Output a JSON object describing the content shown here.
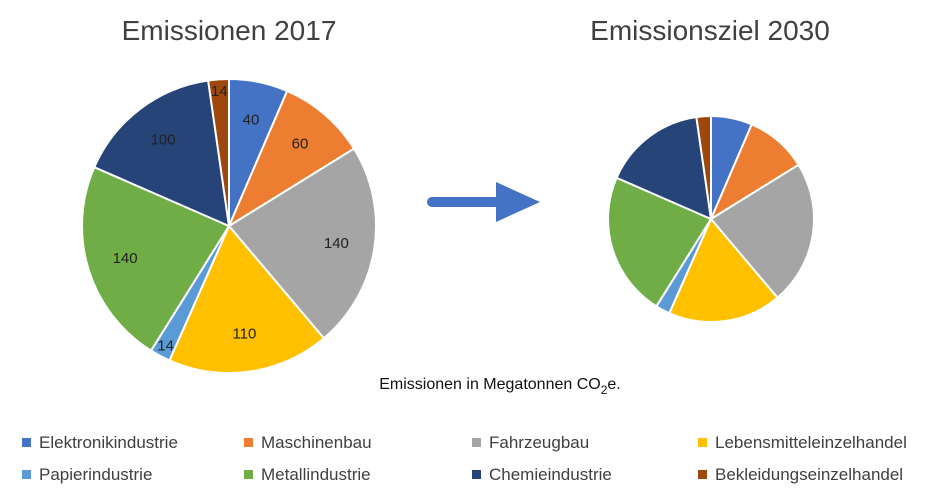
{
  "chart_data": [
    {
      "type": "pie",
      "title": "Emissionen 2017",
      "categories": [
        "Elektronikindustrie",
        "Maschinenbau",
        "Fahrzeugbau",
        "Lebensmitteleinzelhandel",
        "Papierindustrie",
        "Metallindustrie",
        "Chemieindustrie",
        "Bekleidungseinzelhandel"
      ],
      "values": [
        40,
        60,
        140,
        110,
        14,
        140,
        100,
        14
      ],
      "data_labels": [
        "40",
        "60",
        "140",
        "110",
        "14",
        "140",
        "100",
        "14"
      ],
      "colors": [
        "#4472C4",
        "#ED7D31",
        "#A5A5A5",
        "#FFC000",
        "#5B9BD5",
        "#70AD47",
        "#264478",
        "#9E480E"
      ]
    },
    {
      "type": "pie",
      "title": "Emissionsziel 2030",
      "categories": [
        "Elektronikindustrie",
        "Maschinenbau",
        "Fahrzeugbau",
        "Lebensmitteleinzelhandel",
        "Papierindustrie",
        "Metallindustrie",
        "Chemieindustrie",
        "Bekleidungseinzelhandel"
      ],
      "values": [
        40,
        60,
        140,
        110,
        14,
        140,
        100,
        14
      ],
      "colors": [
        "#4472C4",
        "#ED7D31",
        "#A5A5A5",
        "#FFC000",
        "#5B9BD5",
        "#70AD47",
        "#264478",
        "#9E480E"
      ]
    }
  ],
  "caption": {
    "prefix": "Emissionen in Megatonnen CO",
    "subscript": "2",
    "suffix": "e."
  },
  "legend": {
    "placement": "bottom",
    "items": [
      {
        "label": "Elektronikindustrie",
        "color": "#4472C4"
      },
      {
        "label": "Maschinenbau",
        "color": "#ED7D31"
      },
      {
        "label": "Fahrzeugbau",
        "color": "#A5A5A5"
      },
      {
        "label": "Lebensmitteleinzelhandel",
        "color": "#FFC000"
      },
      {
        "label": "Papierindustrie",
        "color": "#5B9BD5"
      },
      {
        "label": "Metallindustrie",
        "color": "#70AD47"
      },
      {
        "label": "Chemieindustrie",
        "color": "#264478"
      },
      {
        "label": "Bekleidungseinzelhandel",
        "color": "#9E480E"
      }
    ]
  },
  "arrow": {
    "icon": "right-arrow-icon",
    "color": "#4472C4"
  }
}
